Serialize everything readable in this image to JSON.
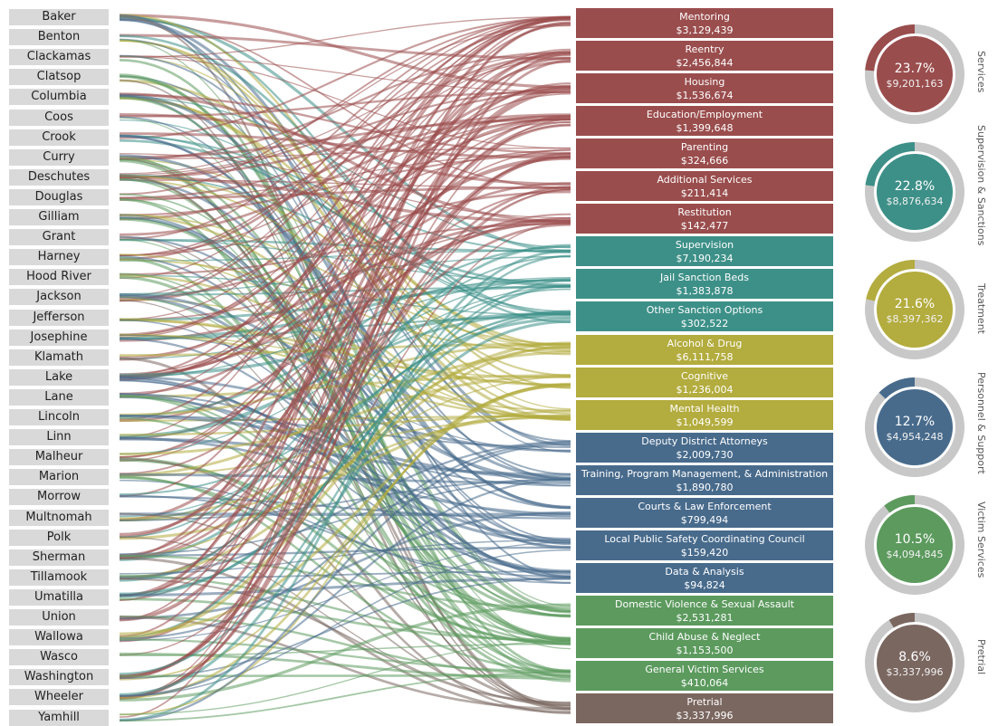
{
  "chart_data": {
    "type": "sankey",
    "counties": [
      "Baker",
      "Benton",
      "Clackamas",
      "Clatsop",
      "Columbia",
      "Coos",
      "Crook",
      "Curry",
      "Deschutes",
      "Douglas",
      "Gilliam",
      "Grant",
      "Harney",
      "Hood River",
      "Jackson",
      "Jefferson",
      "Josephine",
      "Klamath",
      "Lake",
      "Lane",
      "Lincoln",
      "Linn",
      "Malheur",
      "Marion",
      "Morrow",
      "Multnomah",
      "Polk",
      "Sherman",
      "Tillamook",
      "Umatilla",
      "Union",
      "Wallowa",
      "Wasco",
      "Washington",
      "Wheeler",
      "Yamhill"
    ],
    "categories": [
      {
        "label": "Mentoring",
        "value": "$3,129,439",
        "group": 0
      },
      {
        "label": "Reentry",
        "value": "$2,456,844",
        "group": 0
      },
      {
        "label": "Housing",
        "value": "$1,536,674",
        "group": 0
      },
      {
        "label": "Education/Employment",
        "value": "$1,399,648",
        "group": 0
      },
      {
        "label": "Parenting",
        "value": "$324,666",
        "group": 0
      },
      {
        "label": "Additional Services",
        "value": "$211,414",
        "group": 0
      },
      {
        "label": "Restitution",
        "value": "$142,477",
        "group": 0
      },
      {
        "label": "Supervision",
        "value": "$7,190,234",
        "group": 1
      },
      {
        "label": "Jail Sanction Beds",
        "value": "$1,383,878",
        "group": 1
      },
      {
        "label": "Other Sanction Options",
        "value": "$302,522",
        "group": 1
      },
      {
        "label": "Alcohol & Drug",
        "value": "$6,111,758",
        "group": 2
      },
      {
        "label": "Cognitive",
        "value": "$1,236,004",
        "group": 2
      },
      {
        "label": "Mental Health",
        "value": "$1,049,599",
        "group": 2
      },
      {
        "label": "Deputy District Attorneys",
        "value": "$2,009,730",
        "group": 3
      },
      {
        "label": "Training, Program Management, & Administration",
        "value": "$1,890,780",
        "group": 3
      },
      {
        "label": "Courts & Law Enforcement",
        "value": "$799,494",
        "group": 3
      },
      {
        "label": "Local Public Safety Coordinating Council",
        "value": "$159,420",
        "group": 3
      },
      {
        "label": "Data & Analysis",
        "value": "$94,824",
        "group": 3
      },
      {
        "label": "Domestic Violence & Sexual Assault",
        "value": "$2,531,281",
        "group": 4
      },
      {
        "label": "Child Abuse & Neglect",
        "value": "$1,153,500",
        "group": 4
      },
      {
        "label": "General Victim Services",
        "value": "$410,064",
        "group": 4
      },
      {
        "label": "Pretrial",
        "value": "$3,337,996",
        "group": 5
      }
    ],
    "groups": [
      {
        "name": "Services",
        "percent": "23.7%",
        "total": "$9,201,163",
        "fraction": 0.237,
        "color": "#9a4d4d"
      },
      {
        "name": "Supervision & Sanctions",
        "percent": "22.8%",
        "total": "$8,876,634",
        "fraction": 0.228,
        "color": "#3d9088"
      },
      {
        "name": "Treatment",
        "percent": "21.6%",
        "total": "$8,397,362",
        "fraction": 0.216,
        "color": "#b3ac3e"
      },
      {
        "name": "Personnel & Support",
        "percent": "12.7%",
        "total": "$4,954,248",
        "fraction": 0.127,
        "color": "#486b8c"
      },
      {
        "name": "Victim Services",
        "percent": "10.5%",
        "total": "$4,094,845",
        "fraction": 0.105,
        "color": "#5c9a5e"
      },
      {
        "name": "Pretrial",
        "percent": "8.6%",
        "total": "$3,337,996",
        "fraction": 0.086,
        "color": "#7a6760"
      }
    ]
  }
}
